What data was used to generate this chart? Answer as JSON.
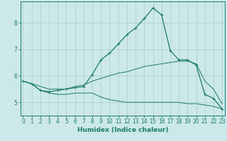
{
  "xlabel": "Humidex (Indice chaleur)",
  "background_color": "#cce8e8",
  "grid_color": "#aacccc",
  "line_color": "#1a7a6a",
  "x_values": [
    0,
    1,
    2,
    3,
    4,
    5,
    6,
    7,
    8,
    9,
    10,
    11,
    12,
    13,
    14,
    15,
    16,
    17,
    18,
    19,
    20,
    21,
    22,
    23
  ],
  "main_line": [
    5.8,
    5.7,
    5.45,
    5.4,
    5.45,
    5.5,
    5.55,
    5.6,
    6.05,
    6.6,
    6.85,
    7.2,
    7.55,
    7.8,
    8.15,
    8.55,
    8.3,
    6.95,
    6.6,
    6.6,
    6.4,
    5.3,
    5.15,
    4.75
  ],
  "upper_line": [
    5.8,
    5.7,
    5.6,
    5.5,
    5.5,
    5.5,
    5.6,
    5.65,
    5.8,
    5.9,
    6.0,
    6.1,
    6.15,
    6.25,
    6.35,
    6.4,
    6.45,
    6.5,
    6.55,
    6.55,
    6.45,
    5.8,
    5.5,
    4.95
  ],
  "lower_line": [
    5.8,
    5.7,
    5.45,
    5.35,
    5.3,
    5.3,
    5.35,
    5.35,
    5.35,
    5.2,
    5.1,
    5.05,
    5.0,
    5.0,
    5.0,
    5.0,
    5.0,
    5.0,
    5.0,
    4.95,
    4.95,
    4.9,
    4.85,
    4.75
  ],
  "ylim": [
    4.5,
    8.8
  ],
  "yticks": [
    5,
    6,
    7,
    8
  ],
  "xticks": [
    0,
    1,
    2,
    3,
    4,
    5,
    6,
    7,
    8,
    9,
    10,
    11,
    12,
    13,
    14,
    15,
    16,
    17,
    18,
    19,
    20,
    21,
    22,
    23
  ],
  "tick_fontsize": 5.5,
  "axis_label_fontsize": 6.5
}
